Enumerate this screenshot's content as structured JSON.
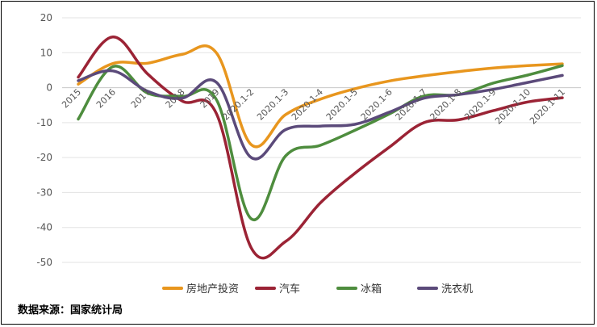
{
  "source_note": "数据来源：国家统计局",
  "chart_data": {
    "type": "line",
    "categories": [
      "2015",
      "2016",
      "2017",
      "2018",
      "2019",
      "2020.1-2",
      "2020.1-3",
      "2020.1-4",
      "2020.1-5",
      "2020.1-6",
      "2020.1-7",
      "2020.1-8",
      "2020.1-9",
      "2020.1-10",
      "2020.1-11"
    ],
    "ylim": [
      -50,
      20
    ],
    "yticks": [
      20,
      10,
      0,
      -10,
      -20,
      -30,
      -40,
      -50
    ],
    "grid": true,
    "legend_position": "bottom",
    "series": [
      {
        "name": "房地产投资",
        "color": "#E8961E",
        "values": [
          1.0,
          6.9,
          7.0,
          9.5,
          9.9,
          -16.3,
          -7.7,
          -3.3,
          -0.3,
          1.9,
          3.4,
          4.6,
          5.6,
          6.3,
          6.8
        ]
      },
      {
        "name": "汽车",
        "color": "#9B2335",
        "values": [
          3.0,
          14.5,
          4.0,
          -3.8,
          -7.5,
          -45.8,
          -44.0,
          -33.0,
          -24.5,
          -17.0,
          -10.0,
          -9.2,
          -6.6,
          -4.1,
          -2.9
        ]
      },
      {
        "name": "冰箱",
        "color": "#4E8D3E",
        "values": [
          -9.0,
          6.0,
          -1.5,
          -2.5,
          -3.5,
          -37.5,
          -19.5,
          -16.5,
          -12.2,
          -7.5,
          -2.4,
          -2.0,
          1.3,
          3.6,
          6.3
        ]
      },
      {
        "name": "洗衣机",
        "color": "#5B4A7A",
        "values": [
          2.0,
          4.8,
          -1.0,
          -3.0,
          1.5,
          -20.0,
          -12.0,
          -11.0,
          -10.5,
          -7.0,
          -3.0,
          -2.0,
          -0.5,
          1.5,
          3.5
        ]
      }
    ]
  }
}
